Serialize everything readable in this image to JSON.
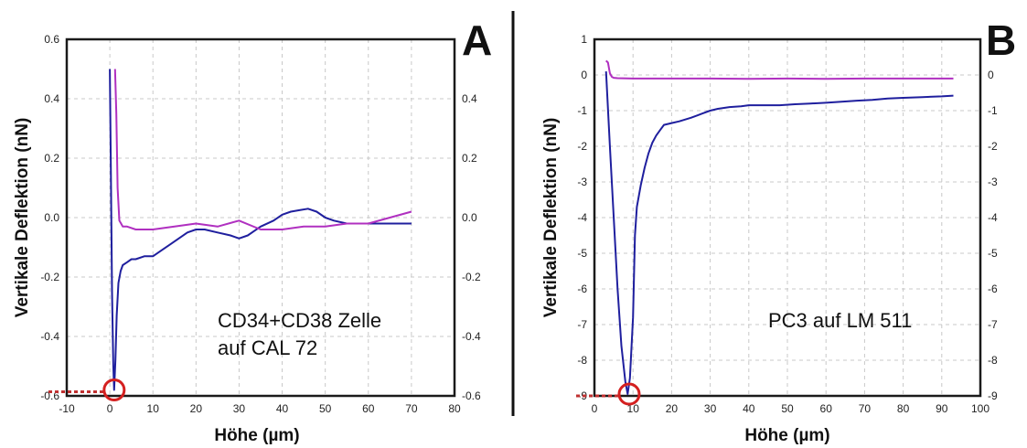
{
  "chart_data": [
    {
      "type": "line",
      "panel_label": "A",
      "xlabel": "Höhe (µm)",
      "ylabel": "Vertikale Deflektion (nN)",
      "xlim": [
        -10,
        80
      ],
      "ylim": [
        -0.6,
        0.6
      ],
      "xticks": [
        "-10",
        "0",
        "10",
        "20",
        "30",
        "40",
        "50",
        "60",
        "70",
        "80"
      ],
      "yticks_left": [
        "0.6",
        "0.4",
        "0.2",
        "0.0",
        "-0.2",
        "-0.4",
        "-0.6"
      ],
      "yticks_right": [
        "0.4",
        "0.2",
        "0.0",
        "-0.2",
        "-0.4",
        "-0.6"
      ],
      "right_ylim": [
        -0.6,
        0.6
      ],
      "grid": true,
      "annotation": [
        "CD34+CD38 Zelle",
        "auf CAL 72"
      ],
      "marker_point": {
        "x": 1,
        "y": -0.58
      },
      "colors": {
        "series_blue": "#1f1f9e",
        "series_magenta": "#b030c0",
        "marker": "#d42020",
        "baseline": "#c03030"
      },
      "series": [
        {
          "color": "#1f1f9e",
          "x": [
            0,
            0.2,
            0.5,
            0.8,
            1.0,
            1.3,
            1.6,
            2,
            2.5,
            3,
            4,
            5,
            6,
            8,
            10,
            12,
            14,
            16,
            18,
            20,
            22,
            25,
            28,
            30,
            32,
            35,
            38,
            40,
            42,
            44,
            46,
            48,
            50,
            52,
            55,
            58,
            60,
            63,
            66,
            68,
            70
          ],
          "y": [
            0.5,
            0.2,
            -0.25,
            -0.5,
            -0.58,
            -0.48,
            -0.33,
            -0.22,
            -0.18,
            -0.16,
            -0.15,
            -0.14,
            -0.14,
            -0.13,
            -0.13,
            -0.11,
            -0.09,
            -0.07,
            -0.05,
            -0.04,
            -0.04,
            -0.05,
            -0.06,
            -0.07,
            -0.06,
            -0.03,
            -0.01,
            0.01,
            0.02,
            0.025,
            0.03,
            0.02,
            0.0,
            -0.01,
            -0.02,
            -0.02,
            -0.02,
            -0.02,
            -0.02,
            -0.02,
            -0.02
          ]
        },
        {
          "color": "#b030c0",
          "x": [
            1.2,
            1.5,
            1.8,
            2.2,
            2.6,
            3,
            4,
            6,
            10,
            15,
            20,
            25,
            30,
            35,
            40,
            45,
            50,
            55,
            60,
            65,
            70
          ],
          "y": [
            0.5,
            0.35,
            0.1,
            -0.01,
            -0.02,
            -0.03,
            -0.03,
            -0.04,
            -0.04,
            -0.03,
            -0.02,
            -0.03,
            -0.01,
            -0.04,
            -0.04,
            -0.03,
            -0.03,
            -0.02,
            -0.02,
            0.0,
            0.02
          ]
        }
      ]
    },
    {
      "type": "line",
      "panel_label": "B",
      "xlabel": "Höhe (µm)",
      "ylabel": "Vertikale Deflektion (nN)",
      "xlim": [
        0,
        100
      ],
      "ylim": [
        -9,
        1
      ],
      "xticks": [
        "0",
        "10",
        "20",
        "30",
        "40",
        "50",
        "60",
        "70",
        "80",
        "90",
        "100"
      ],
      "yticks_left": [
        "1",
        "0",
        "-1",
        "-2",
        "-3",
        "-4",
        "-5",
        "-6",
        "-7",
        "-8",
        "-9"
      ],
      "yticks_right": [
        "0",
        "-1",
        "-2",
        "-3",
        "-4",
        "-5",
        "-6",
        "-7",
        "-8",
        "-9"
      ],
      "right_ylim": [
        -9,
        1
      ],
      "grid": true,
      "annotation": [
        "PC3 auf LM 511"
      ],
      "marker_point": {
        "x": 9,
        "y": -8.95
      },
      "colors": {
        "series_blue": "#1f1f9e",
        "series_magenta": "#b030c0",
        "marker": "#d42020",
        "baseline": "#c03030"
      },
      "series": [
        {
          "color": "#1f1f9e",
          "x": [
            3,
            4,
            5,
            6,
            7,
            8,
            8.6,
            9.2,
            10,
            10.5,
            11,
            12,
            13,
            14,
            15,
            16,
            17,
            18,
            20,
            22,
            25,
            28,
            30,
            32,
            35,
            38,
            40,
            44,
            48,
            52,
            56,
            60,
            64,
            68,
            72,
            76,
            80,
            85,
            90,
            93
          ],
          "y": [
            0.1,
            -2.0,
            -4.0,
            -6.0,
            -7.6,
            -8.6,
            -8.95,
            -8.5,
            -6.8,
            -4.5,
            -3.7,
            -3.1,
            -2.6,
            -2.2,
            -1.9,
            -1.7,
            -1.55,
            -1.4,
            -1.35,
            -1.3,
            -1.2,
            -1.08,
            -1.0,
            -0.95,
            -0.9,
            -0.88,
            -0.85,
            -0.85,
            -0.85,
            -0.82,
            -0.8,
            -0.78,
            -0.75,
            -0.72,
            -0.7,
            -0.66,
            -0.64,
            -0.62,
            -0.6,
            -0.58
          ]
        },
        {
          "color": "#b030c0",
          "x": [
            3,
            3.5,
            4,
            4.5,
            5,
            6,
            10,
            20,
            30,
            40,
            50,
            60,
            70,
            80,
            90,
            93
          ],
          "y": [
            0.4,
            0.35,
            0.05,
            -0.05,
            -0.08,
            -0.09,
            -0.1,
            -0.1,
            -0.1,
            -0.11,
            -0.1,
            -0.11,
            -0.1,
            -0.1,
            -0.1,
            -0.1
          ]
        }
      ]
    }
  ]
}
